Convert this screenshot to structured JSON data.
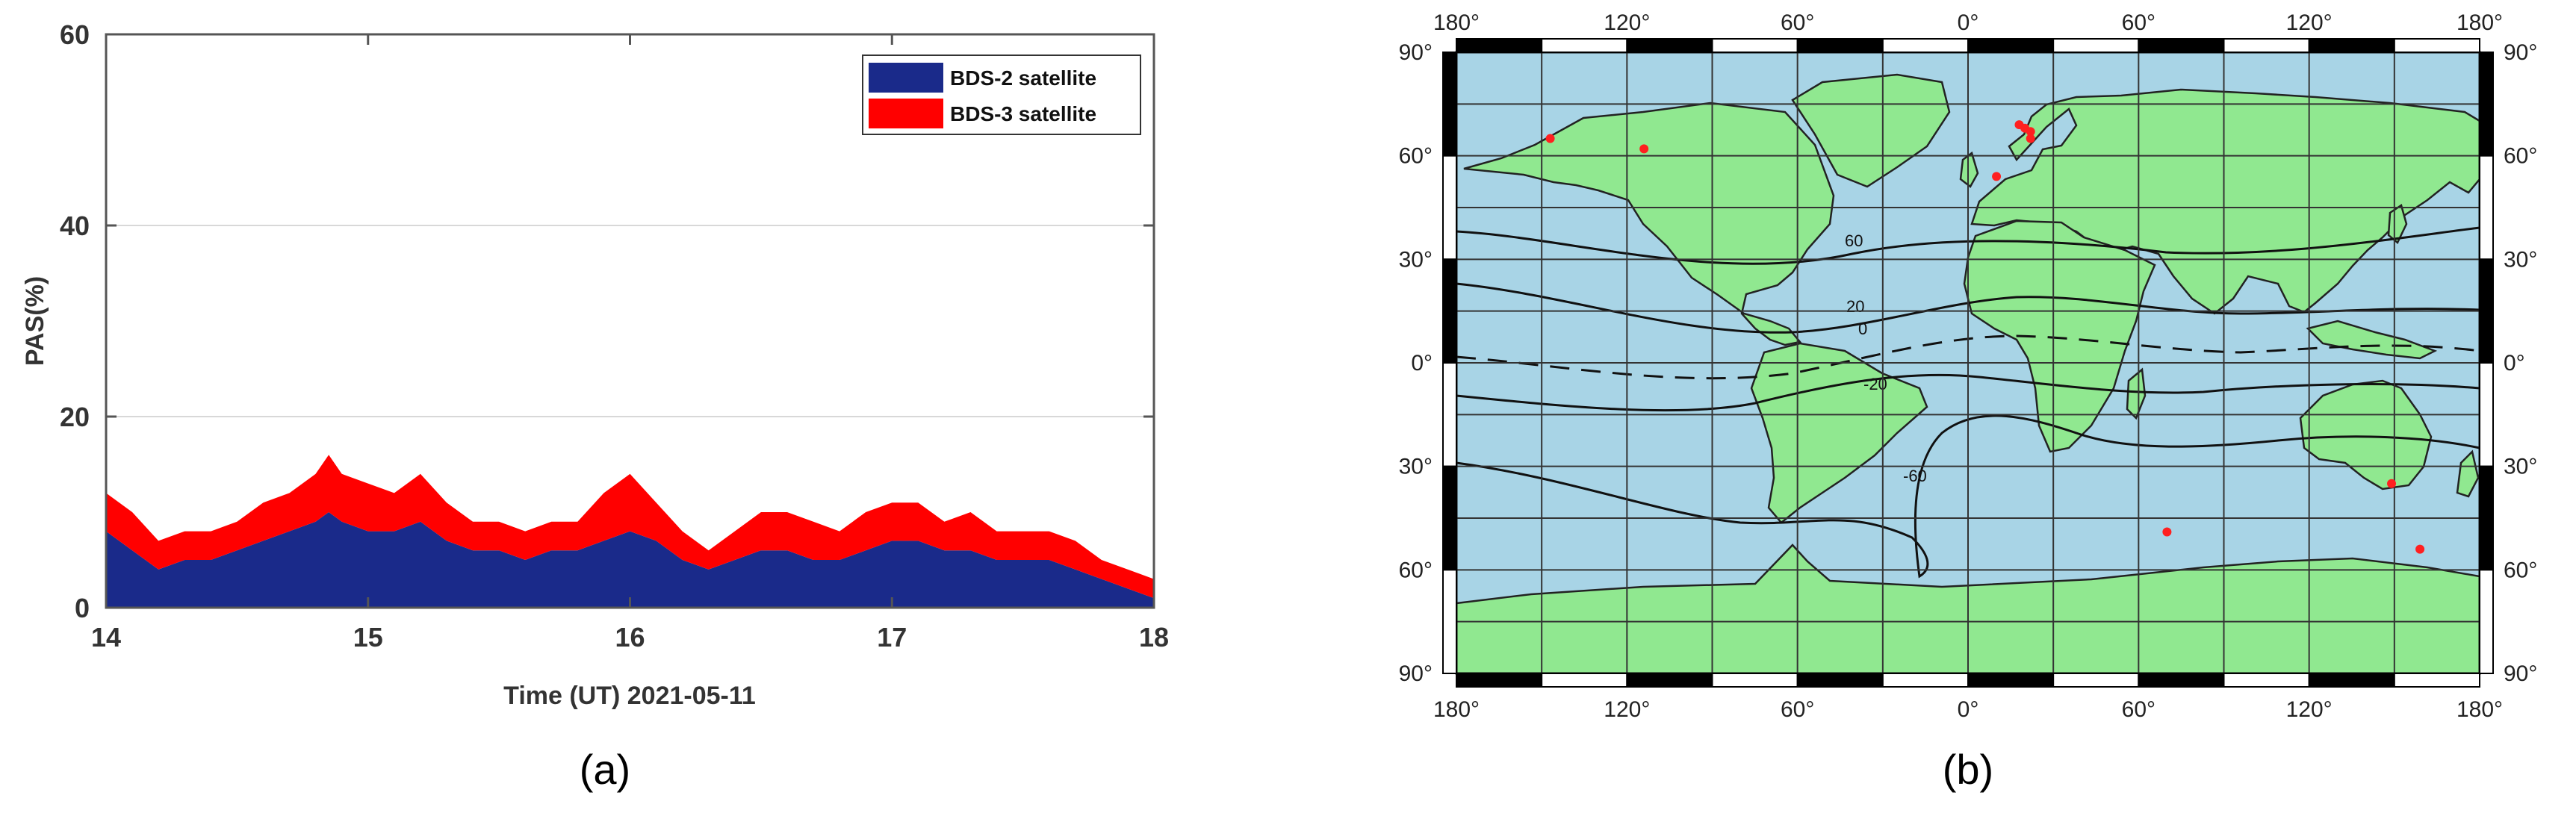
{
  "panel_a": {
    "caption": "(a)",
    "chart_data": {
      "type": "area",
      "xlabel": "Time (UT)  2021-05-11",
      "ylabel": "PAS(%)",
      "xlim": [
        14,
        18
      ],
      "ylim": [
        0,
        60
      ],
      "xticks": [
        "14",
        "15",
        "16",
        "17",
        "18"
      ],
      "yticks": [
        "0",
        "20",
        "40",
        "60"
      ],
      "grid": "horizontal",
      "legend_position": "top-right",
      "stacked": true,
      "x": [
        14.0,
        14.1,
        14.2,
        14.3,
        14.4,
        14.5,
        14.6,
        14.7,
        14.8,
        14.85,
        14.9,
        15.0,
        15.1,
        15.2,
        15.3,
        15.4,
        15.5,
        15.6,
        15.7,
        15.8,
        15.9,
        16.0,
        16.1,
        16.2,
        16.3,
        16.4,
        16.5,
        16.6,
        16.7,
        16.8,
        16.9,
        17.0,
        17.1,
        17.2,
        17.3,
        17.4,
        17.5,
        17.6,
        17.7,
        17.8,
        17.9,
        18.0
      ],
      "series": [
        {
          "name": "BDS-2 satellite",
          "color": "#1a2a8a",
          "values": [
            8,
            6,
            4,
            5,
            5,
            6,
            7,
            8,
            9,
            10,
            9,
            8,
            8,
            9,
            7,
            6,
            6,
            5,
            6,
            6,
            7,
            8,
            7,
            5,
            4,
            5,
            6,
            6,
            5,
            5,
            6,
            7,
            7,
            6,
            6,
            5,
            5,
            5,
            4,
            3,
            2,
            1
          ]
        },
        {
          "name": "BDS-3 satellite",
          "color": "#ff0000",
          "values": [
            4,
            4,
            3,
            3,
            3,
            3,
            4,
            4,
            5,
            6,
            5,
            5,
            4,
            5,
            4,
            3,
            3,
            3,
            3,
            3,
            5,
            6,
            4,
            3,
            2,
            3,
            4,
            4,
            4,
            3,
            4,
            4,
            4,
            3,
            4,
            3,
            3,
            3,
            3,
            2,
            2,
            2
          ]
        }
      ]
    }
  },
  "panel_b": {
    "caption": "(b)",
    "map": {
      "top_lon_labels": [
        "180°",
        "120°",
        "60°",
        "0°",
        "60°",
        "120°",
        "180°"
      ],
      "bottom_lon_labels": [
        "180°",
        "120°",
        "60°",
        "0°",
        "60°",
        "120°",
        "180°"
      ],
      "left_lat_labels": [
        "90°",
        "60°",
        "30°",
        "0°",
        "30°",
        "60°",
        "90°"
      ],
      "right_lat_labels": [
        "90°",
        "60°",
        "30°",
        "0°",
        "30°",
        "60°",
        "90°"
      ],
      "contour_labels": [
        "60",
        "20",
        "0",
        "-20",
        "-60"
      ],
      "ocean_color": "#a8d4e6",
      "land_color": "#90e890",
      "station_color": "#ff2020",
      "stations": [
        {
          "lon": -147,
          "lat": 65
        },
        {
          "lon": -114,
          "lat": 62
        },
        {
          "lon": 18,
          "lat": 69
        },
        {
          "lon": 20,
          "lat": 68
        },
        {
          "lon": 22,
          "lat": 67
        },
        {
          "lon": 22,
          "lat": 65
        },
        {
          "lon": 10,
          "lat": 54
        },
        {
          "lon": 70,
          "lat": -49
        },
        {
          "lon": 149,
          "lat": -35
        },
        {
          "lon": 159,
          "lat": -54
        }
      ]
    }
  }
}
